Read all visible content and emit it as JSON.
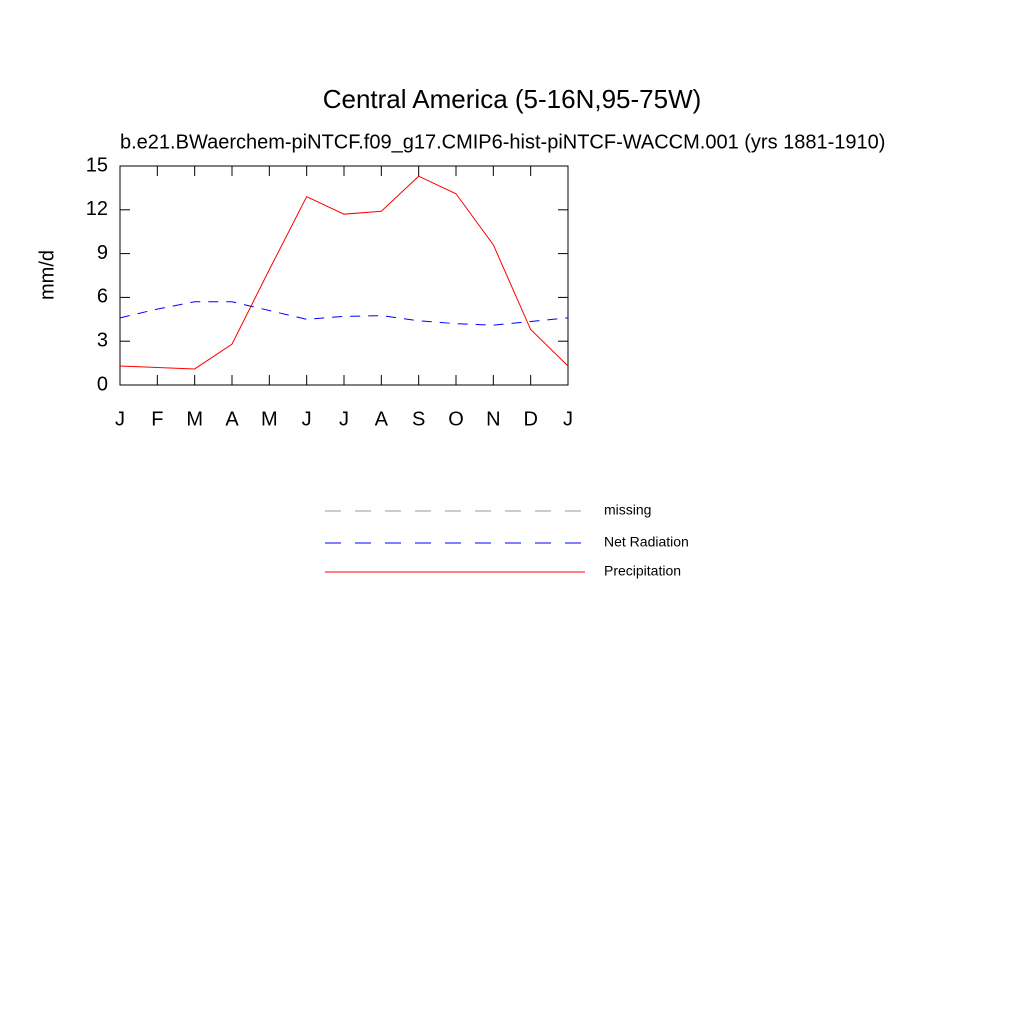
{
  "chart_data": {
    "type": "line",
    "title": "Central America (5-16N,95-75W)",
    "subtitle": "b.e21.BWaerchem-piNTCF.f09_g17.CMIP6-hist-piNTCF-WACCM.001 (yrs 1881-1910)",
    "y_label": "mm/d",
    "categories": [
      "J",
      "F",
      "M",
      "A",
      "M",
      "J",
      "J",
      "A",
      "S",
      "O",
      "N",
      "D",
      "J"
    ],
    "ylim": [
      0,
      15
    ],
    "yticks": [
      0,
      3,
      6,
      9,
      12,
      15
    ],
    "series": [
      {
        "name": "missing",
        "color": "#999999",
        "style": "dashed",
        "values": [
          null,
          null,
          null,
          null,
          null,
          null,
          null,
          null,
          null,
          null,
          null,
          null,
          null
        ]
      },
      {
        "name": "Net Radiation",
        "color": "#0000ff",
        "style": "dashed",
        "values": [
          4.6,
          5.2,
          5.7,
          5.7,
          5.1,
          4.5,
          4.7,
          4.75,
          4.4,
          4.2,
          4.1,
          4.35,
          4.6
        ]
      },
      {
        "name": "Precipitation",
        "color": "#ff0000",
        "style": "solid",
        "values": [
          1.3,
          1.2,
          1.1,
          2.8,
          7.9,
          12.9,
          11.7,
          11.9,
          14.3,
          13.1,
          9.6,
          3.8,
          1.3
        ]
      }
    ]
  }
}
